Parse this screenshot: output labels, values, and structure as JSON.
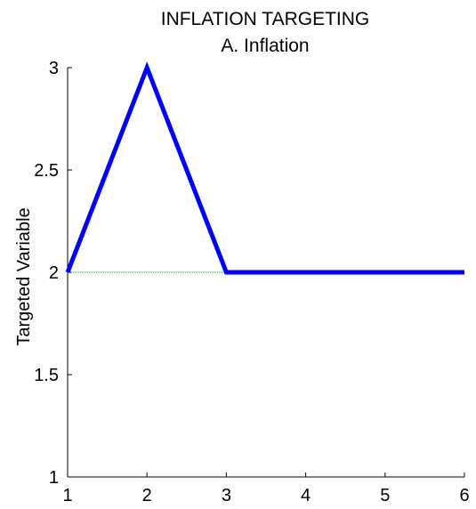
{
  "chart_data": {
    "type": "line",
    "title": "INFLATION TARGETING",
    "subtitle": "A. Inflation",
    "xlabel": "",
    "ylabel": "Targeted Variable",
    "xlim": [
      1,
      6
    ],
    "ylim": [
      1,
      3
    ],
    "xticks": [
      1,
      2,
      3,
      4,
      5,
      6
    ],
    "xtick_labels": [
      "1",
      "2",
      "3",
      "4",
      "5",
      "6"
    ],
    "yticks": [
      1,
      1.5,
      2,
      2.5,
      3
    ],
    "ytick_labels": [
      "1",
      "1.5",
      "2",
      "2.5",
      "3"
    ],
    "grid": false,
    "series": [
      {
        "x": [
          1,
          2,
          3,
          4,
          5,
          6
        ],
        "y": [
          2,
          3,
          2,
          2,
          2,
          2
        ],
        "color": "#0000ff",
        "style": "solid"
      },
      {
        "x": [
          1,
          3
        ],
        "y": [
          2,
          2
        ],
        "color": "#008000",
        "style": "dotted"
      }
    ]
  }
}
